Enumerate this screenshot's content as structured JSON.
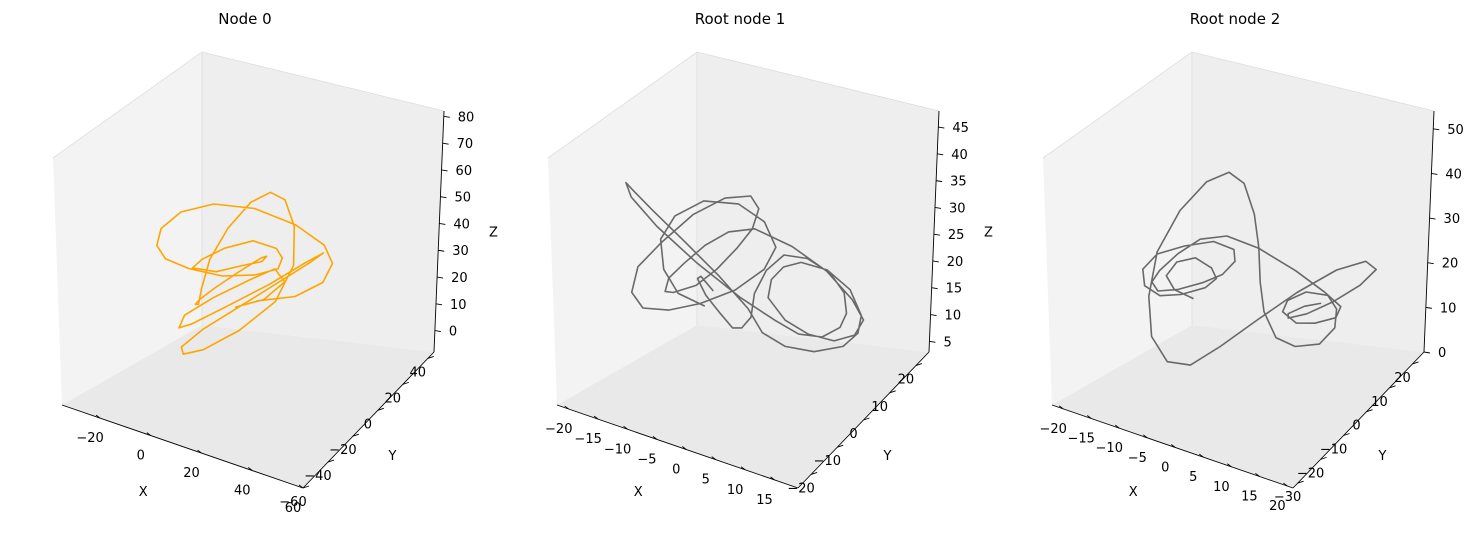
{
  "chart_data": [
    {
      "type": "line",
      "projection": "3d",
      "title": "Node 0",
      "xlabel": "X",
      "ylabel": "Y",
      "zlabel": "Z",
      "xlim": [
        -35,
        60
      ],
      "ylim": [
        -60,
        45
      ],
      "zlim": [
        -8,
        82
      ],
      "xticks": [
        -20,
        0,
        20,
        40,
        60
      ],
      "yticks": [
        -60,
        -40,
        -20,
        0,
        20,
        40
      ],
      "zticks": [
        0,
        10,
        20,
        30,
        40,
        50,
        60,
        70,
        80
      ],
      "series": [
        {
          "color": "#ffa500",
          "x": [
            5,
            18,
            30,
            38,
            40,
            34,
            22,
            8,
            -6,
            -18,
            -26,
            -30,
            -27,
            -18,
            -6,
            6,
            14,
            18,
            14,
            6,
            -4,
            -12,
            -16,
            -12,
            -4,
            6,
            12,
            14,
            8,
            0,
            -8,
            -14,
            -18,
            -22,
            -24,
            -20,
            -10,
            2,
            14,
            24,
            30,
            28,
            18,
            6,
            -4,
            -10,
            -8,
            0,
            10,
            20,
            26,
            24,
            16,
            4,
            -6,
            -12,
            -14,
            -8,
            2,
            10,
            16,
            12,
            4
          ],
          "y": [
            10,
            14,
            12,
            4,
            -6,
            -16,
            -24,
            -28,
            -26,
            -18,
            -6,
            8,
            20,
            28,
            30,
            24,
            12,
            0,
            -10,
            -16,
            -14,
            -6,
            4,
            12,
            16,
            12,
            4,
            -4,
            -10,
            -12,
            -8,
            0,
            10,
            20,
            30,
            36,
            34,
            26,
            14,
            2,
            -10,
            -20,
            -28,
            -32,
            -28,
            -18,
            -6,
            6,
            16,
            22,
            20,
            10,
            -2,
            -12,
            -18,
            -16,
            -8,
            2,
            10,
            14,
            10,
            2,
            -4
          ],
          "z": [
            25,
            30,
            40,
            52,
            62,
            70,
            74,
            72,
            64,
            52,
            40,
            30,
            24,
            22,
            26,
            34,
            44,
            52,
            56,
            52,
            44,
            36,
            32,
            30,
            34,
            40,
            46,
            48,
            42,
            34,
            26,
            20,
            16,
            18,
            26,
            38,
            52,
            62,
            66,
            62,
            52,
            40,
            28,
            18,
            12,
            10,
            14,
            22,
            32,
            42,
            48,
            46,
            38,
            28,
            20,
            16,
            18,
            24,
            32,
            38,
            36,
            30,
            26
          ]
        }
      ]
    },
    {
      "type": "line",
      "projection": "3d",
      "title": "Root node 1",
      "xlabel": "X",
      "ylabel": "Y",
      "zlabel": "Z",
      "xlim": [
        -22,
        19
      ],
      "ylim": [
        -25,
        25
      ],
      "zlim": [
        3,
        48
      ],
      "xticks": [
        -20,
        -15,
        -10,
        -5,
        0,
        5,
        10,
        15
      ],
      "yticks": [
        -20,
        -10,
        0,
        10,
        20
      ],
      "zticks": [
        5,
        10,
        15,
        20,
        25,
        30,
        35,
        40,
        45
      ],
      "series": [
        {
          "color": "#696969",
          "x": [
            -6,
            -9,
            -11,
            -12,
            -11,
            -8,
            -4,
            -1,
            0,
            -2,
            -6,
            -10,
            -13,
            -15,
            -15,
            -13,
            -9,
            -5,
            -2,
            0,
            -1,
            -4,
            -8,
            -12,
            -15,
            -17,
            -16,
            -13,
            -8,
            -3,
            1,
            4,
            8,
            11,
            13,
            13,
            11,
            8,
            5,
            3,
            2,
            4,
            7,
            10,
            13,
            15,
            15,
            13,
            10,
            6,
            3,
            1,
            0,
            -3,
            -7,
            -11,
            -14,
            -16,
            -17,
            -15,
            -11,
            -6,
            -2,
            1,
            5,
            9,
            12,
            14,
            14,
            12,
            9,
            6,
            3,
            1,
            -2,
            -5,
            -8,
            -10,
            -10,
            -8,
            -5
          ],
          "y": [
            -6,
            -9,
            -10,
            -9,
            -6,
            -2,
            2,
            5,
            7,
            7,
            5,
            1,
            -4,
            -9,
            -13,
            -15,
            -15,
            -12,
            -7,
            -2,
            3,
            7,
            10,
            11,
            10,
            6,
            1,
            -4,
            -9,
            -12,
            -12,
            -9,
            -4,
            2,
            7,
            11,
            12,
            11,
            8,
            4,
            0,
            -3,
            -5,
            -5,
            -2,
            2,
            6,
            9,
            10,
            8,
            4,
            0,
            -3,
            -7,
            -11,
            -14,
            -15,
            -13,
            -9,
            -4,
            2,
            7,
            11,
            13,
            13,
            11,
            7,
            2,
            -3,
            -7,
            -9,
            -9,
            -7,
            -4,
            -1,
            2,
            4,
            3,
            0,
            -3,
            -5
          ],
          "z": [
            22,
            24,
            28,
            33,
            37,
            40,
            40,
            37,
            32,
            27,
            22,
            19,
            18,
            19,
            23,
            29,
            35,
            41,
            44,
            44,
            40,
            34,
            28,
            22,
            18,
            17,
            19,
            24,
            30,
            36,
            40,
            41,
            38,
            33,
            27,
            22,
            18,
            16,
            17,
            20,
            25,
            30,
            34,
            36,
            35,
            31,
            25,
            20,
            16,
            14,
            15,
            18,
            23,
            29,
            35,
            40,
            43,
            43,
            39,
            33,
            26,
            20,
            16,
            14,
            15,
            19,
            24,
            30,
            35,
            38,
            38,
            34,
            28,
            22,
            18,
            16,
            17,
            20,
            24,
            26,
            25
          ]
        }
      ]
    },
    {
      "type": "line",
      "projection": "3d",
      "title": "Root node 2",
      "xlabel": "X",
      "ylabel": "Y",
      "zlabel": "Z",
      "xlim": [
        -22,
        21
      ],
      "ylim": [
        -32,
        25
      ],
      "zlim": [
        0,
        54
      ],
      "xticks": [
        -20,
        -15,
        -10,
        -5,
        0,
        5,
        10,
        15,
        20
      ],
      "yticks": [
        -30,
        -20,
        -10,
        0,
        10,
        20
      ],
      "zticks": [
        0,
        10,
        20,
        30,
        40,
        50
      ],
      "series": [
        {
          "color": "#696969",
          "x": [
            -10,
            -12,
            -13,
            -12,
            -10,
            -8,
            -8,
            -10,
            -13,
            -15,
            -16,
            -15,
            -12,
            -8,
            -5,
            -4,
            -6,
            -10,
            -14,
            -17,
            -18,
            -16,
            -12,
            -7,
            -3,
            0,
            3,
            7,
            10,
            12,
            12,
            10,
            8,
            6,
            6,
            8,
            11,
            13,
            14,
            13,
            10,
            7,
            4,
            2,
            0,
            -3,
            -7,
            -11,
            -15,
            -18,
            -19,
            -17,
            -13,
            -8,
            -3,
            1,
            5,
            9,
            13,
            16,
            17,
            15,
            12,
            9,
            7,
            7,
            9,
            11
          ],
          "y": [
            -2,
            -5,
            -6,
            -4,
            -1,
            1,
            3,
            3,
            0,
            -4,
            -8,
            -11,
            -12,
            -10,
            -5,
            1,
            6,
            10,
            11,
            8,
            2,
            -5,
            -11,
            -15,
            -15,
            -11,
            -5,
            1,
            6,
            8,
            6,
            2,
            -1,
            -2,
            0,
            3,
            5,
            4,
            1,
            -3,
            -6,
            -7,
            -5,
            -2,
            2,
            7,
            12,
            15,
            15,
            11,
            4,
            -4,
            -12,
            -17,
            -19,
            -16,
            -10,
            -3,
            4,
            9,
            11,
            9,
            5,
            1,
            -2,
            -2,
            0,
            2
          ],
          "z": [
            20,
            22,
            25,
            28,
            29,
            27,
            24,
            21,
            19,
            19,
            22,
            27,
            32,
            35,
            36,
            33,
            28,
            22,
            18,
            16,
            17,
            22,
            28,
            35,
            40,
            41,
            38,
            33,
            28,
            25,
            23,
            22,
            22,
            24,
            26,
            28,
            28,
            26,
            23,
            20,
            19,
            20,
            24,
            29,
            35,
            40,
            44,
            44,
            40,
            33,
            25,
            18,
            13,
            11,
            13,
            18,
            24,
            30,
            35,
            37,
            35,
            31,
            27,
            24,
            23,
            24,
            26,
            27
          ]
        }
      ]
    }
  ]
}
